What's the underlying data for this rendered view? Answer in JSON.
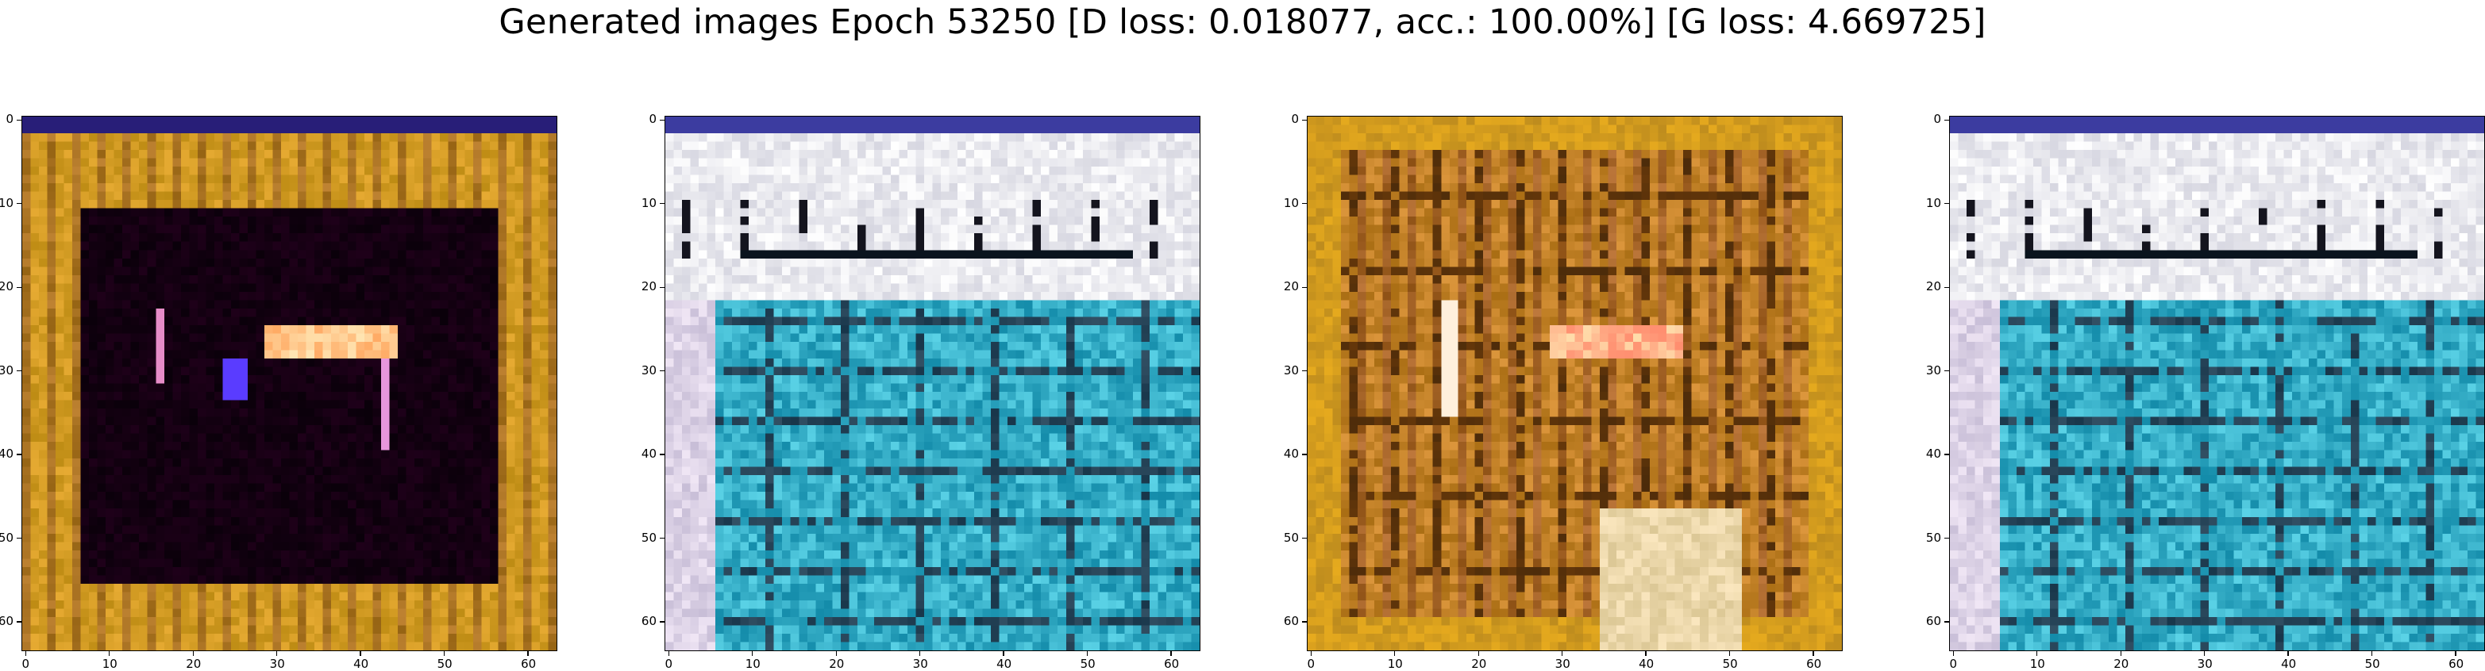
{
  "figure": {
    "title": "Generated images Epoch 53250 [D loss: 0.018077, acc.: 100.00%] [G loss: 4.669725]"
  },
  "panels": [
    {
      "name": "generated-image-1",
      "palette": "orange-dark-center"
    },
    {
      "name": "generated-image-2",
      "palette": "white-cyan"
    },
    {
      "name": "generated-image-3",
      "palette": "orange-brown"
    },
    {
      "name": "generated-image-4",
      "palette": "white-cyan"
    }
  ],
  "axes": {
    "x_ticks": [
      "0",
      "10",
      "20",
      "30",
      "40",
      "50",
      "60"
    ],
    "y_ticks": [
      "0",
      "10",
      "20",
      "30",
      "40",
      "50",
      "60"
    ],
    "pixel_grid": "64x64"
  }
}
